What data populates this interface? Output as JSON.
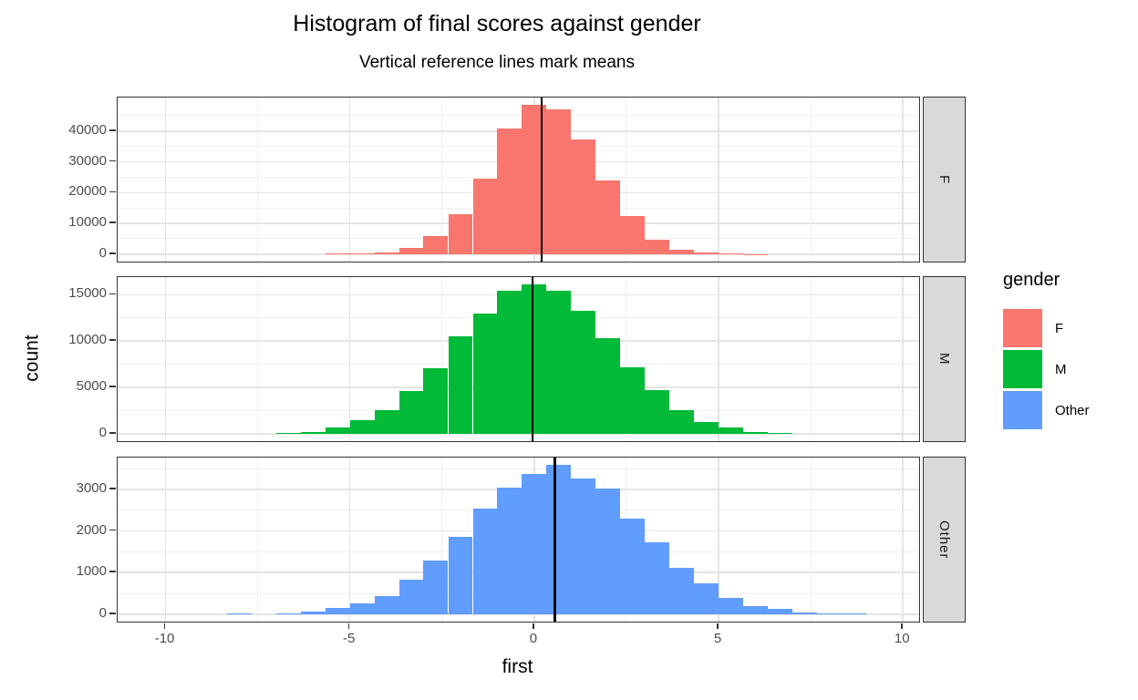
{
  "chart_data": {
    "type": "bar",
    "subtype": "faceted-histogram",
    "title": "Histogram of final scores against gender",
    "subtitle": "Vertical reference lines mark means",
    "xlabel": "first",
    "ylabel": "count",
    "grid": true,
    "bin_width": 0.6667,
    "x_ticks": [
      -10,
      -5,
      0,
      5,
      10
    ],
    "x_minor_ticks": [
      -7.5,
      -2.5,
      2.5,
      7.5
    ],
    "x_range": [
      -11.3,
      10.44
    ],
    "legend": {
      "title": "gender",
      "position": "right"
    },
    "facets": [
      {
        "label": "F",
        "color": "#F8766D",
        "mean_line_x": 0.2,
        "y_ticks": [
          0,
          10000,
          20000,
          30000,
          40000
        ],
        "y_minor_ticks": [
          5000,
          15000,
          25000,
          35000,
          45000
        ],
        "bin_centers": [
          -5.33,
          -4.67,
          -4,
          -3.33,
          -2.67,
          -2,
          -1.33,
          -0.67,
          0,
          0.67,
          1.33,
          2,
          2.67,
          3.33,
          4,
          4.67,
          5.33,
          6
        ],
        "counts": [
          100,
          250,
          650,
          2000,
          6000,
          13000,
          24500,
          40800,
          48500,
          47000,
          37400,
          23900,
          12500,
          4700,
          1550,
          450,
          150,
          50
        ]
      },
      {
        "label": "M",
        "color": "#00BA38",
        "mean_line_x": -0.05,
        "y_ticks": [
          0,
          5000,
          10000,
          15000
        ],
        "y_minor_ticks": [
          2500,
          7500,
          12500
        ],
        "bin_centers": [
          -6.67,
          -6,
          -5.33,
          -4.67,
          -4,
          -3.33,
          -2.67,
          -2,
          -1.33,
          -0.67,
          0,
          0.67,
          1.33,
          2,
          2.67,
          3.33,
          4,
          4.67,
          5.33,
          6,
          6.67
        ],
        "counts": [
          80,
          225,
          710,
          1455,
          2520,
          4590,
          7050,
          10500,
          12930,
          15450,
          16100,
          15450,
          13250,
          10280,
          7180,
          4690,
          2520,
          1290,
          710,
          225,
          90
        ]
      },
      {
        "label": "Other",
        "color": "#619CFF",
        "mean_line_x": 0.56,
        "y_ticks": [
          0,
          1000,
          2000,
          3000
        ],
        "y_minor_ticks": [
          500,
          1500,
          2500,
          3500
        ],
        "bin_centers": [
          -8,
          -6.67,
          -6,
          -5.33,
          -4.67,
          -4,
          -3.33,
          -2.67,
          -2,
          -1.33,
          -0.67,
          0,
          0.67,
          1.33,
          2,
          2.67,
          3.33,
          4,
          4.67,
          5.33,
          6,
          6.67,
          7.33,
          8,
          8.67
        ],
        "counts": [
          15,
          25,
          60,
          140,
          250,
          440,
          820,
          1280,
          1855,
          2535,
          3050,
          3380,
          3590,
          3260,
          3020,
          2305,
          1735,
          1120,
          750,
          394,
          193,
          122,
          36,
          15,
          10
        ]
      }
    ]
  }
}
